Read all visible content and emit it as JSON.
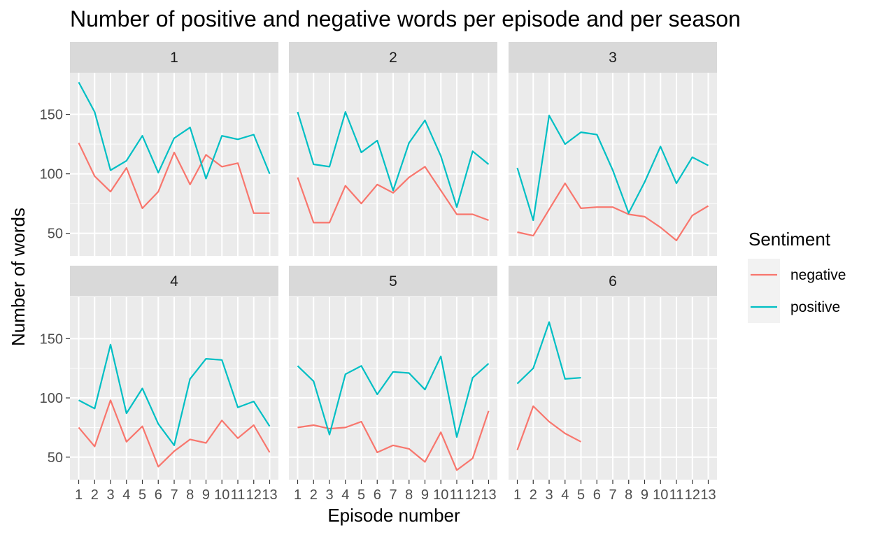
{
  "chart_data": {
    "type": "line",
    "title": "Number of positive and negative words per episode and per season",
    "xlabel": "Episode number",
    "ylabel": "Number of words",
    "legend": {
      "title": "Sentiment",
      "position": "right"
    },
    "facet_labels": [
      "1",
      "2",
      "3",
      "4",
      "5",
      "6"
    ],
    "x_ticks": [
      "1",
      "2",
      "3",
      "4",
      "5",
      "6",
      "7",
      "8",
      "9",
      "10",
      "11",
      "12",
      "13"
    ],
    "y_ticks": [
      "50",
      "100",
      "150"
    ],
    "xlim": [
      0.45,
      13.55
    ],
    "ylim": [
      31,
      185
    ],
    "grid": true,
    "series_colors": {
      "negative": "#F8766D",
      "positive": "#00BFC4"
    },
    "facets": [
      {
        "label": "1",
        "series": [
          {
            "name": "negative",
            "x": [
              1,
              2,
              3,
              4,
              5,
              6,
              7,
              8,
              9,
              10,
              11,
              12,
              13
            ],
            "values": [
              126,
              98,
              85,
              105,
              71,
              85,
              118,
              91,
              116,
              106,
              109,
              67,
              67
            ]
          },
          {
            "name": "positive",
            "x": [
              1,
              2,
              3,
              4,
              5,
              6,
              7,
              8,
              9,
              10,
              11,
              12,
              13
            ],
            "values": [
              177,
              152,
              103,
              111,
              132,
              101,
              130,
              139,
              96,
              132,
              129,
              133,
              100
            ]
          }
        ]
      },
      {
        "label": "2",
        "series": [
          {
            "name": "negative",
            "x": [
              1,
              2,
              3,
              4,
              5,
              6,
              7,
              8,
              9,
              10,
              11,
              12,
              13
            ],
            "values": [
              97,
              59,
              59,
              90,
              75,
              91,
              84,
              97,
              106,
              86,
              66,
              66,
              61
            ]
          },
          {
            "name": "positive",
            "x": [
              1,
              2,
              3,
              4,
              5,
              6,
              7,
              8,
              9,
              10,
              11,
              12,
              13
            ],
            "values": [
              152,
              108,
              106,
              152,
              118,
              128,
              86,
              126,
              145,
              115,
              72,
              119,
              108
            ]
          }
        ]
      },
      {
        "label": "3",
        "series": [
          {
            "name": "negative",
            "x": [
              1,
              2,
              3,
              4,
              5,
              6,
              7,
              8,
              9,
              10,
              11,
              12,
              13
            ],
            "values": [
              51,
              48,
              70,
              92,
              71,
              72,
              72,
              66,
              64,
              55,
              44,
              65,
              73
            ]
          },
          {
            "name": "positive",
            "x": [
              1,
              2,
              3,
              4,
              5,
              6,
              7,
              8,
              9,
              10,
              11,
              12,
              13
            ],
            "values": [
              105,
              61,
              149,
              125,
              135,
              133,
              103,
              67,
              93,
              123,
              92,
              114,
              107
            ]
          }
        ]
      },
      {
        "label": "4",
        "series": [
          {
            "name": "negative",
            "x": [
              1,
              2,
              3,
              4,
              5,
              6,
              7,
              8,
              9,
              10,
              11,
              12,
              13
            ],
            "values": [
              75,
              59,
              98,
              63,
              76,
              42,
              55,
              65,
              62,
              81,
              66,
              77,
              54
            ]
          },
          {
            "name": "positive",
            "x": [
              1,
              2,
              3,
              4,
              5,
              6,
              7,
              8,
              9,
              10,
              11,
              12,
              13
            ],
            "values": [
              98,
              91,
              145,
              87,
              108,
              78,
              60,
              116,
              133,
              132,
              92,
              97,
              76
            ]
          }
        ]
      },
      {
        "label": "5",
        "series": [
          {
            "name": "negative",
            "x": [
              1,
              2,
              3,
              4,
              5,
              6,
              7,
              8,
              9,
              10,
              11,
              12,
              13
            ],
            "values": [
              75,
              77,
              74,
              75,
              80,
              54,
              60,
              57,
              46,
              71,
              39,
              49,
              89
            ]
          },
          {
            "name": "positive",
            "x": [
              1,
              2,
              3,
              4,
              5,
              6,
              7,
              8,
              9,
              10,
              11,
              12,
              13
            ],
            "values": [
              127,
              114,
              69,
              120,
              127,
              103,
              122,
              121,
              107,
              135,
              67,
              117,
              129
            ]
          }
        ]
      },
      {
        "label": "6",
        "series": [
          {
            "name": "negative",
            "x": [
              1,
              2,
              3,
              4,
              5
            ],
            "values": [
              56,
              93,
              80,
              70,
              63
            ]
          },
          {
            "name": "positive",
            "x": [
              1,
              2,
              3,
              4,
              5
            ],
            "values": [
              112,
              125,
              164,
              116,
              117
            ]
          }
        ]
      }
    ]
  }
}
